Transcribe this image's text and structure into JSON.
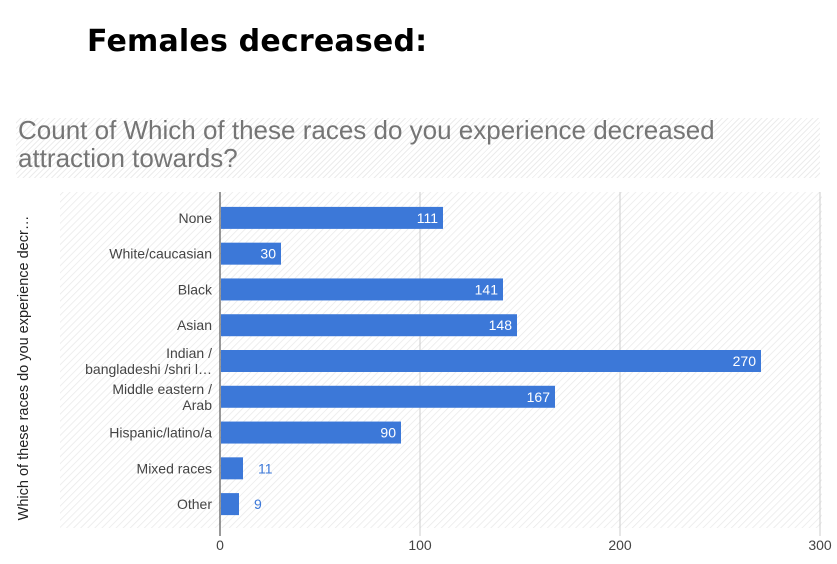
{
  "heading": "Females decreased:",
  "chart_data": {
    "type": "bar",
    "orientation": "horizontal",
    "title": "Count of Which of these races do you experience decreased attraction towards?",
    "ylabel": "Which of these races do you experience decr…",
    "xlabel": "",
    "categories": [
      [
        "None"
      ],
      [
        "White/caucasian"
      ],
      [
        "Black"
      ],
      [
        "Asian"
      ],
      [
        "Indian /",
        "bangladeshi /shri l…"
      ],
      [
        "Middle eastern /",
        "Arab"
      ],
      [
        "Hispanic/latino/a"
      ],
      [
        "Mixed races"
      ],
      [
        "Other"
      ]
    ],
    "values": [
      111,
      30,
      141,
      148,
      270,
      167,
      90,
      11,
      9
    ],
    "xlim": [
      0,
      300
    ],
    "xticks": [
      0,
      100,
      200,
      300
    ],
    "bar_color": "#3c78d8",
    "grid": true,
    "legend": "none"
  }
}
